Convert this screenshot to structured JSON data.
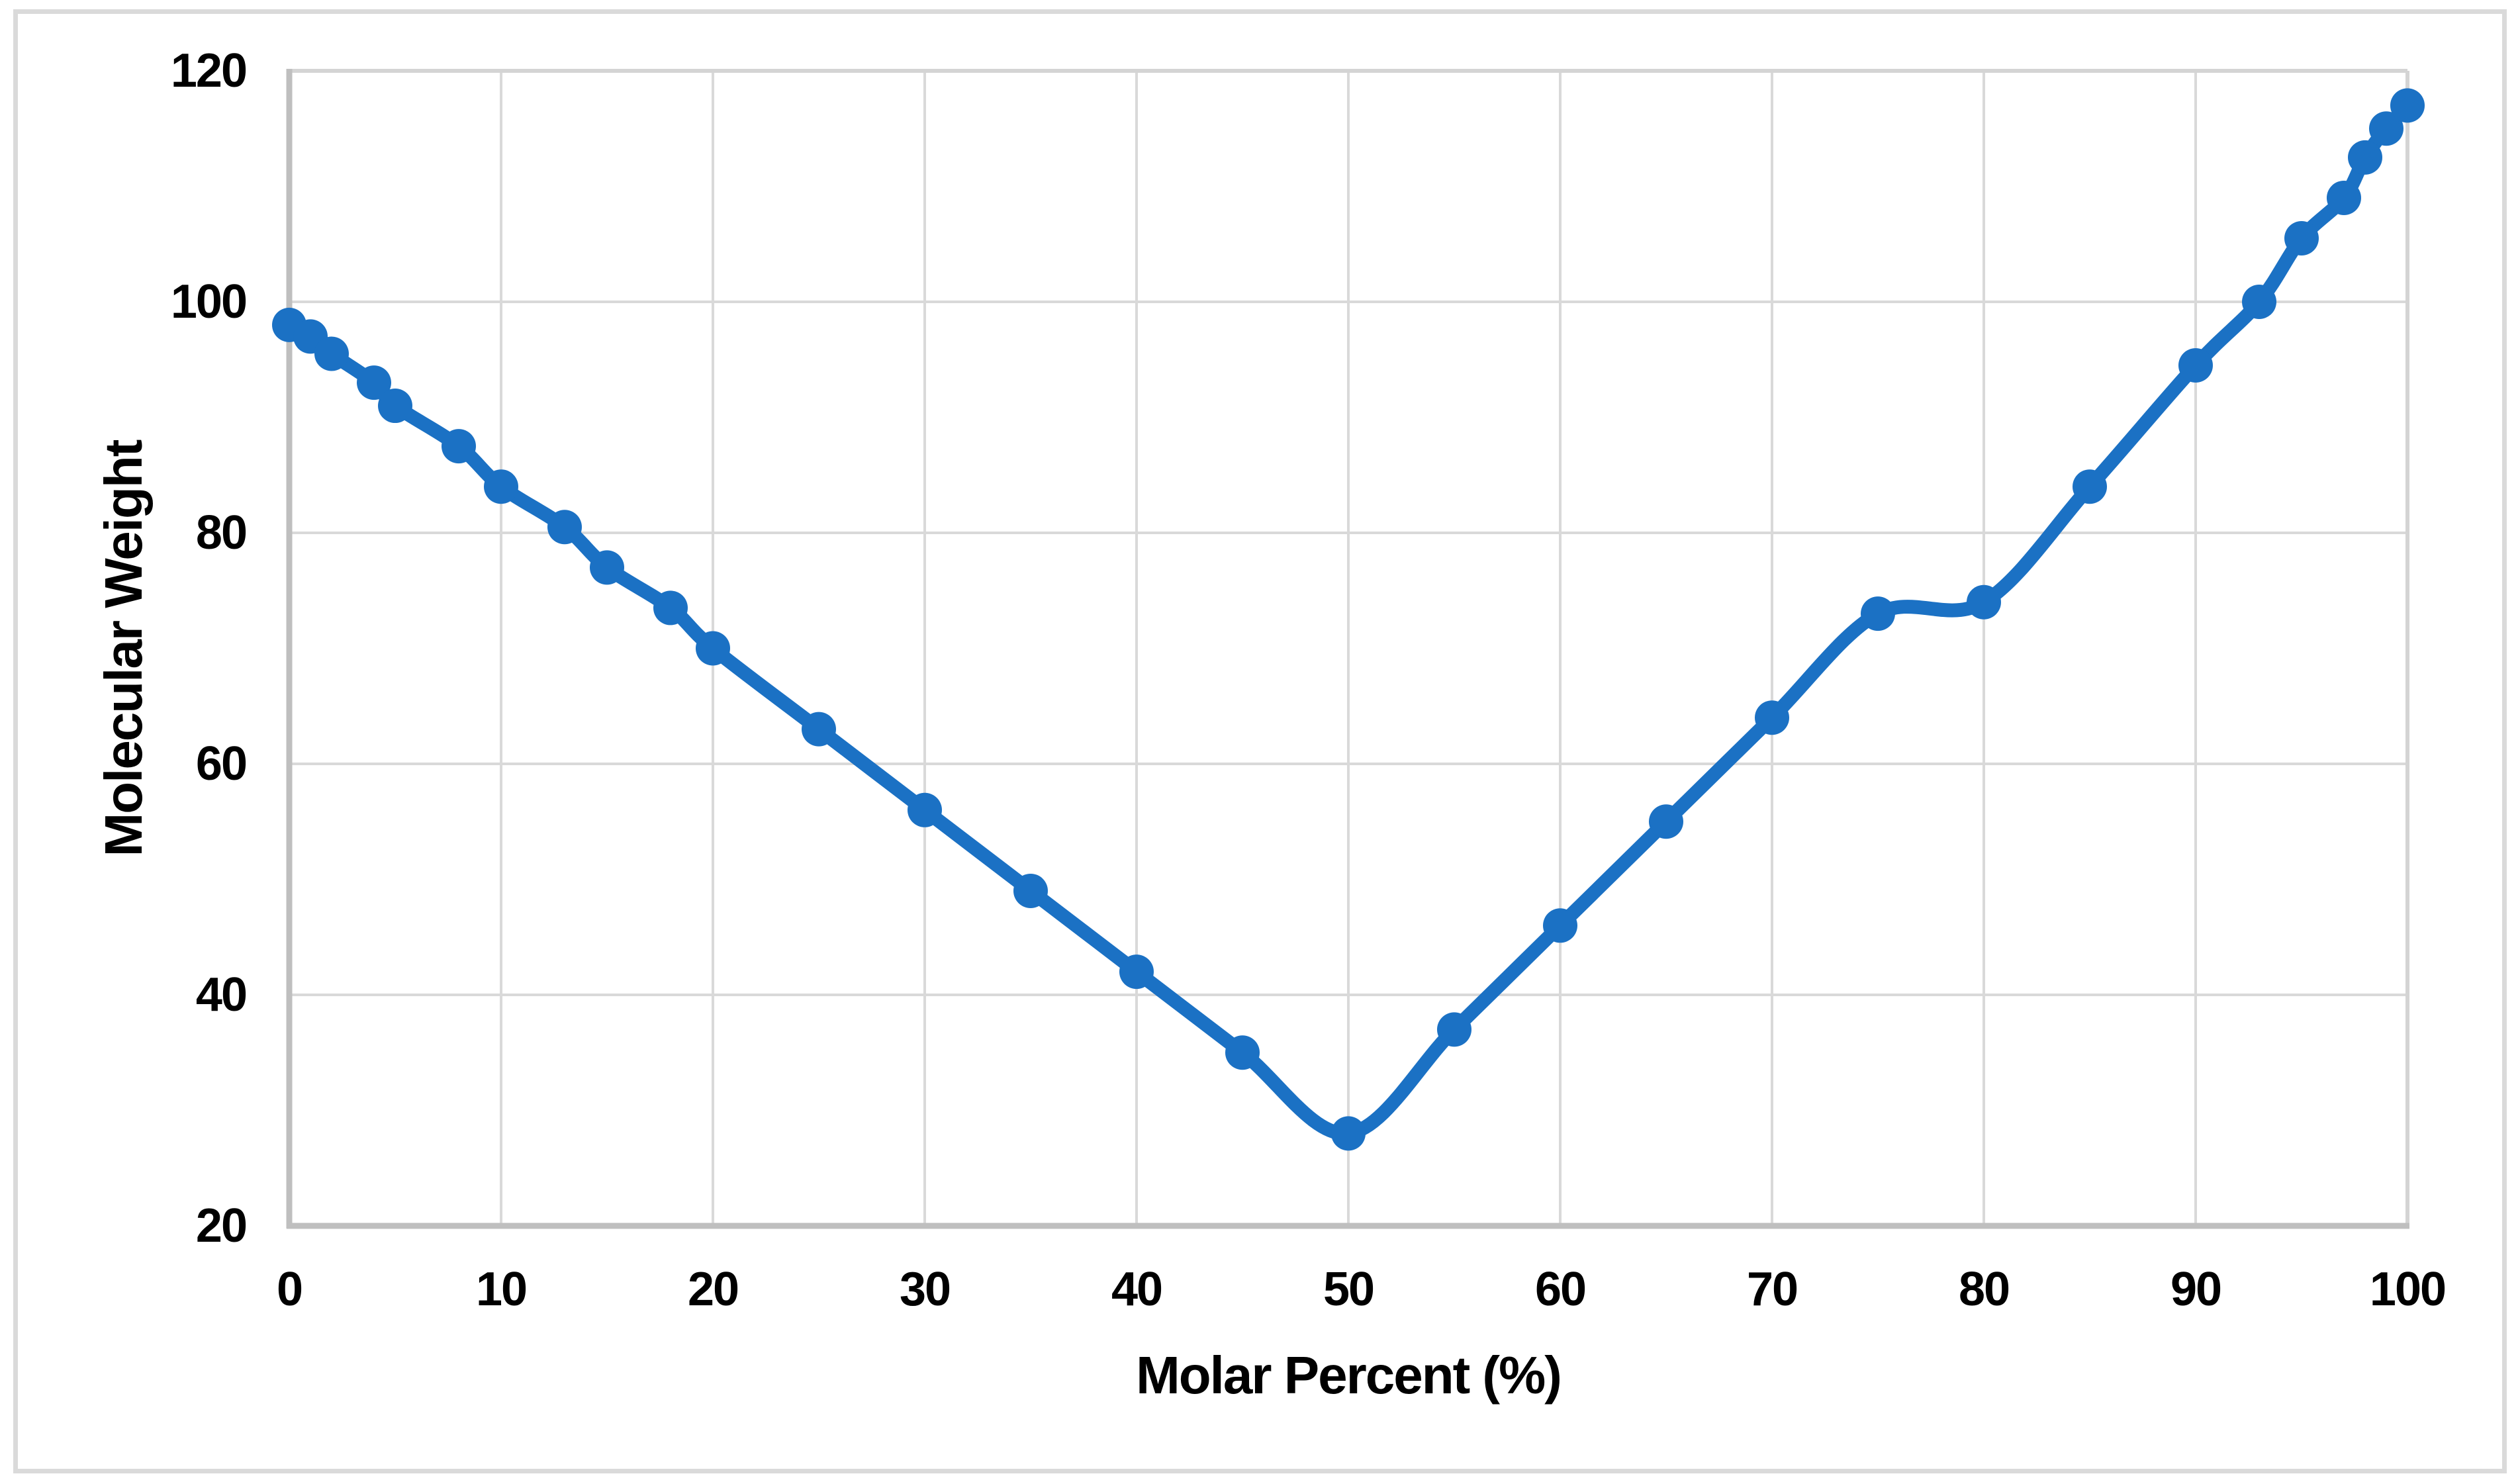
{
  "chart_data": {
    "type": "line",
    "title": "",
    "xlabel": "Molar Percent (%)",
    "ylabel": "Molecular Weight",
    "x": [
      0,
      1,
      2,
      4,
      5,
      8,
      10,
      13,
      15,
      18,
      20,
      25,
      30,
      35,
      40,
      45,
      50,
      55,
      60,
      65,
      70,
      75,
      80,
      85,
      90,
      93,
      95,
      97,
      98,
      99,
      100
    ],
    "series": [
      {
        "name": "Molecular Weight",
        "values": [
          98,
          97,
          95.5,
          93,
          91,
          87.5,
          84,
          80.5,
          77,
          73.5,
          70,
          63,
          56,
          49,
          42,
          35,
          28,
          37,
          46,
          55,
          64,
          73,
          74,
          84,
          94.5,
          100,
          105.5,
          109,
          112.5,
          115,
          117
        ]
      }
    ],
    "x_ticks": [
      0,
      10,
      20,
      30,
      40,
      50,
      60,
      70,
      80,
      90,
      100
    ],
    "y_ticks": [
      20,
      40,
      60,
      80,
      100,
      120
    ],
    "xlim": [
      0,
      100
    ],
    "ylim": [
      20,
      120
    ],
    "grid": true,
    "legend_position": "none",
    "line_smooth": true,
    "marker": "circle",
    "colors": {
      "line": "#1B71C4",
      "grid": "#D9D9D9",
      "plot_border": "#D4D4D4",
      "axis": "#BFBFBF",
      "frame": "#DADADA",
      "text": "#000000",
      "background": "#FFFFFF"
    }
  }
}
